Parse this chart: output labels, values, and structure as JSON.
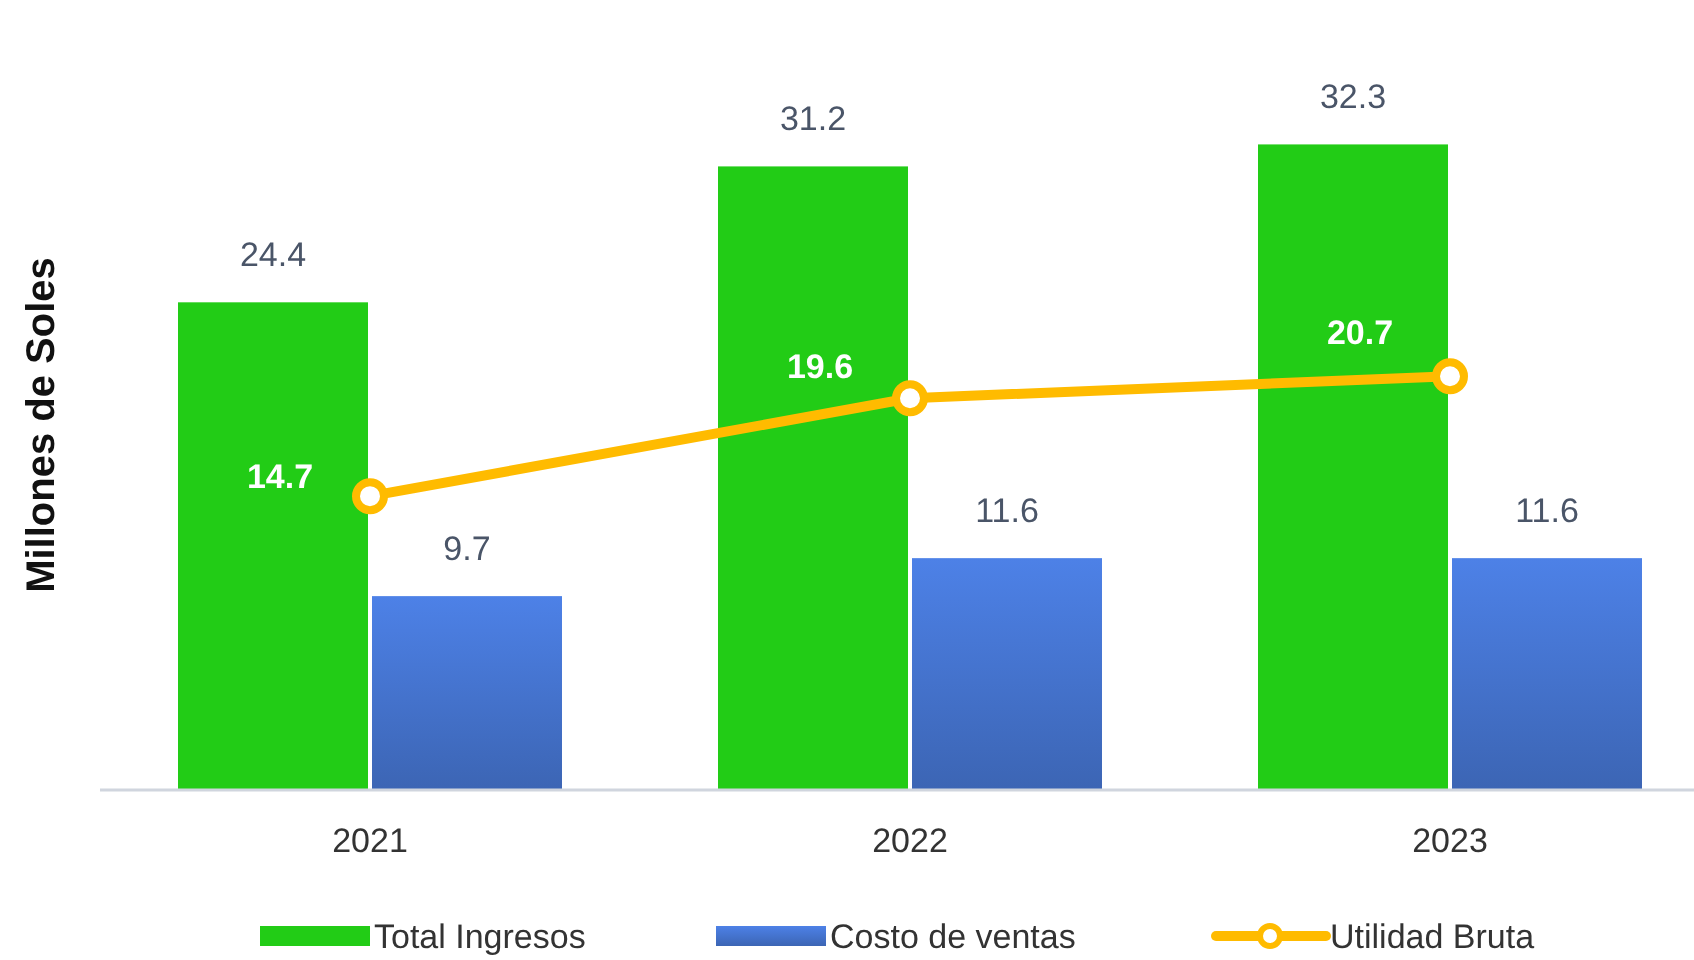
{
  "chart_data": {
    "type": "bar",
    "ylabel": "Millones de Soles",
    "categories": [
      "2021",
      "2022",
      "2023"
    ],
    "series": [
      {
        "name": "Total Ingresos",
        "color": "#22cc16",
        "values": [
          24.4,
          31.2,
          32.3
        ]
      },
      {
        "name": "Costo de ventas",
        "color": "#4472cc",
        "values": [
          9.7,
          11.6,
          11.6
        ]
      },
      {
        "name": "Utilidad Bruta",
        "type": "line",
        "color": "#ffbb00",
        "values": [
          14.7,
          19.6,
          20.7
        ],
        "marker": "circle"
      }
    ],
    "data_labels": true,
    "legend": "bottom",
    "grid": false,
    "tick_labels": "x"
  }
}
